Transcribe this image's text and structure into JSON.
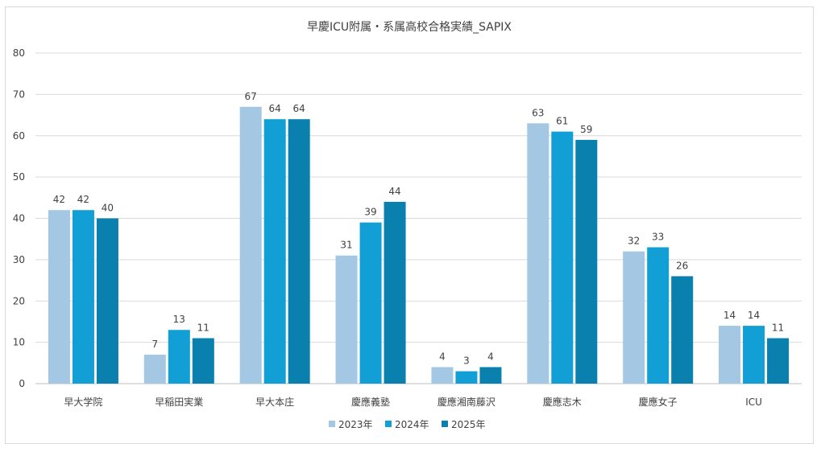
{
  "chart_data": {
    "type": "bar",
    "title": "早慶ICU附属・系属高校合格実績_SAPIX",
    "categories": [
      "早大学院",
      "早稲田実業",
      "早大本庄",
      "慶應義塾",
      "慶應湘南藤沢",
      "慶應志木",
      "慶應女子",
      "ICU"
    ],
    "series": [
      {
        "name": "2023年",
        "color": "#A4C7E3",
        "values": [
          42,
          7,
          67,
          31,
          4,
          63,
          32,
          14
        ]
      },
      {
        "name": "2024年",
        "color": "#129FD5",
        "values": [
          42,
          13,
          64,
          39,
          3,
          61,
          33,
          14
        ]
      },
      {
        "name": "2025年",
        "color": "#0A80AE",
        "values": [
          40,
          11,
          64,
          44,
          4,
          59,
          26,
          11
        ]
      }
    ],
    "ylim": [
      0,
      80
    ],
    "yticks": [
      0,
      10,
      20,
      30,
      40,
      50,
      60,
      70,
      80
    ],
    "grid": true,
    "legend": "bottom",
    "data_labels": true
  }
}
